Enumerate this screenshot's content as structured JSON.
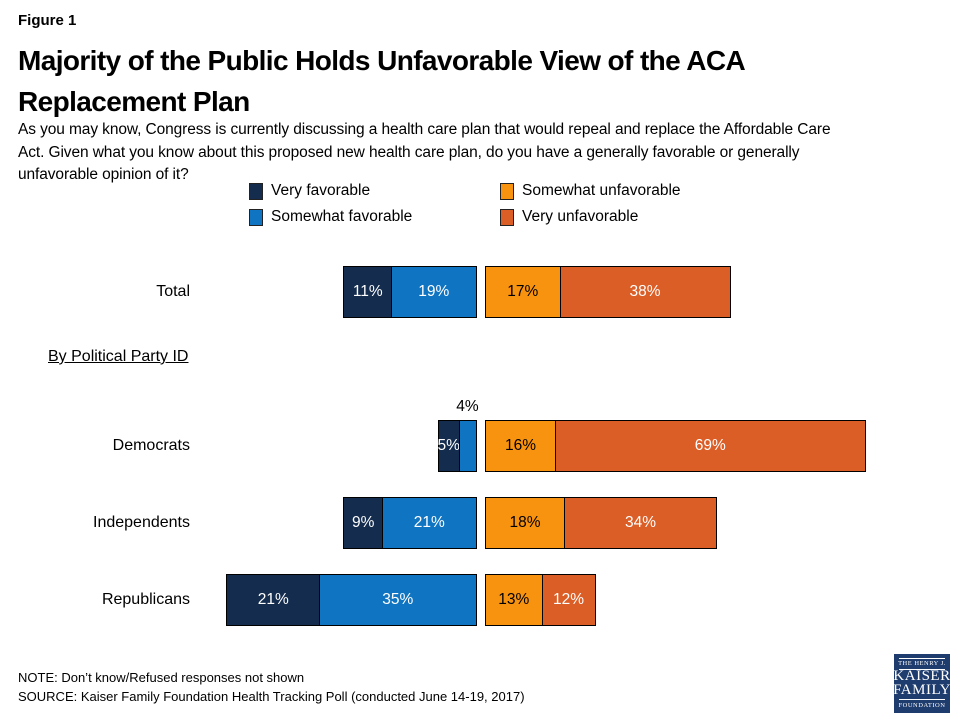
{
  "figure_label": "Figure 1",
  "title_lines": [
    "Majority of the Public Holds Unfavorable View of the ACA",
    "Replacement Plan"
  ],
  "question_lines": [
    "As you may know, Congress is currently discussing a health care plan that would repeal and replace the Affordable Care",
    "Act. Given what you know about this proposed new health care plan, do you have a generally favorable or generally",
    "unfavorable opinion of it?"
  ],
  "chart_data": {
    "type": "bar",
    "variant": "horizontal-diverging-stacked",
    "unit": "percent",
    "axis_range": [
      0,
      100
    ],
    "grid": false,
    "legend_position": "top-center-two-columns",
    "group_heading": "By Political Party ID",
    "series": [
      {
        "name": "Very favorable",
        "color": "#142C4E",
        "label_color": "#FFFFFF",
        "side": "favorable"
      },
      {
        "name": "Somewhat favorable",
        "color": "#0F74C2",
        "label_color": "#FFFFFF",
        "side": "favorable"
      },
      {
        "name": "Somewhat unfavorable",
        "color": "#F8930F",
        "label_color": "#000000",
        "side": "unfavorable"
      },
      {
        "name": "Very unfavorable",
        "color": "#DC5E27",
        "label_color": "#FFFFFF",
        "side": "unfavorable"
      }
    ],
    "categories": [
      "Total",
      "Democrats",
      "Independents",
      "Republicans"
    ],
    "rows": [
      {
        "label": "Total",
        "values": [
          11,
          19,
          17,
          38
        ],
        "labels": [
          "11%",
          "19%",
          "17%",
          "38%"
        ]
      },
      {
        "label": "Democrats",
        "values": [
          5,
          4,
          16,
          69
        ],
        "labels": [
          "5%",
          "4%",
          "16%",
          "69%"
        ],
        "outside_label_series_index": 1
      },
      {
        "label": "Independents",
        "values": [
          9,
          21,
          18,
          34
        ],
        "labels": [
          "9%",
          "21%",
          "18%",
          "34%"
        ]
      },
      {
        "label": "Republicans",
        "values": [
          21,
          35,
          13,
          12
        ],
        "labels": [
          "21%",
          "35%",
          "13%",
          "12%"
        ]
      }
    ]
  },
  "footer": {
    "note": "NOTE: Don’t know/Refused responses not shown",
    "source": "SOURCE: Kaiser Family Foundation Health Tracking Poll (conducted June 14-19, 2017)"
  },
  "logo": {
    "top": "THE HENRY J.",
    "line1": "KAISER",
    "line2": "FAMILY",
    "bottom": "FOUNDATION"
  }
}
